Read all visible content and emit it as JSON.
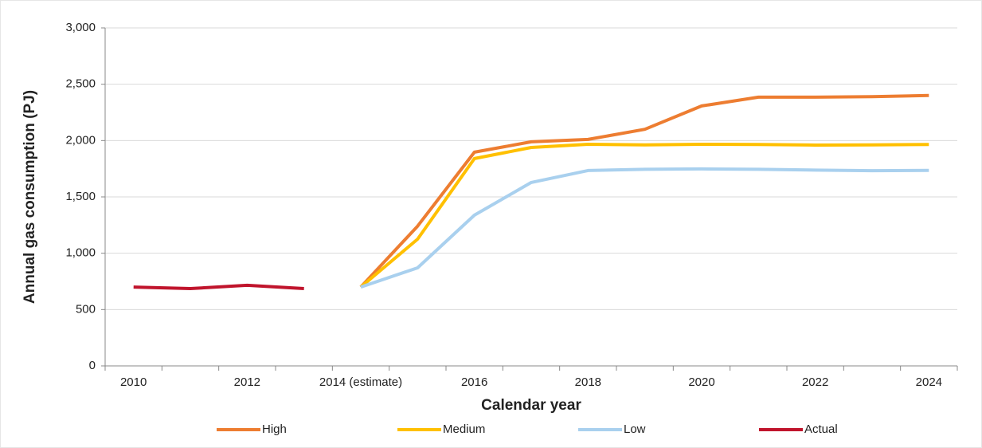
{
  "chart_data": {
    "type": "line",
    "x_label": "Calendar year",
    "y_label": "Annual gas consumption (PJ)",
    "categories": [
      "2010",
      null,
      "2012",
      null,
      "2014 (estimate)",
      null,
      "2016",
      null,
      "2018",
      null,
      "2020",
      null,
      "2022",
      null,
      "2024"
    ],
    "ylim": [
      0,
      3000
    ],
    "yticks": [
      0,
      500,
      {
        "value": 1000,
        "label": "1,000"
      },
      {
        "value": 1500,
        "label": "1,500"
      },
      {
        "value": 2000,
        "label": "2,000"
      },
      {
        "value": 2500,
        "label": "2,500"
      },
      {
        "value": 3000,
        "label": "3,000"
      }
    ],
    "grid": true,
    "legend": "bottom",
    "series": [
      {
        "name": "High",
        "color": "#ed7d31",
        "values": [
          null,
          null,
          null,
          null,
          700,
          1240,
          1897,
          1989,
          2010,
          2100,
          2307,
          2385,
          2385,
          2390,
          2400
        ]
      },
      {
        "name": "Medium",
        "color": "#ffc000",
        "values": [
          null,
          null,
          null,
          null,
          700,
          1125,
          1840,
          1939,
          1967,
          1962,
          1967,
          1965,
          1960,
          1962,
          1965
        ]
      },
      {
        "name": "Low",
        "color": "#a9d0ee",
        "values": [
          null,
          null,
          null,
          null,
          700,
          870,
          1338,
          1628,
          1734,
          1745,
          1748,
          1745,
          1738,
          1733,
          1735
        ]
      },
      {
        "name": "Actual",
        "color": "#c0142c",
        "values": [
          700,
          686,
          715,
          686,
          null,
          null,
          null,
          null,
          null,
          null,
          null,
          null,
          null,
          null,
          null
        ]
      }
    ]
  }
}
